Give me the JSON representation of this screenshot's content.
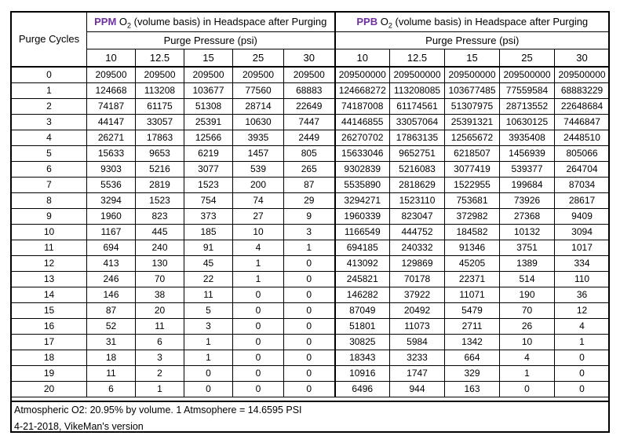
{
  "table": {
    "corner_label": "Purge Cycles",
    "ppm_group": {
      "prefix": "PPM",
      "o_symbol": "O",
      "sub": "2",
      "suffix": " (volume basis) in Headspace after Purging"
    },
    "ppb_group": {
      "prefix": "PPB",
      "o_symbol": "O",
      "sub": "2",
      "suffix": " (volume basis) in Headspace after Purging"
    },
    "pressure_label": "Purge Pressure (psi)",
    "pressures": [
      "10",
      "12.5",
      "15",
      "25",
      "30"
    ],
    "rows": [
      {
        "cycle": "0",
        "ppm": [
          "209500",
          "209500",
          "209500",
          "209500",
          "209500"
        ],
        "ppb": [
          "209500000",
          "209500000",
          "209500000",
          "209500000",
          "209500000"
        ]
      },
      {
        "cycle": "1",
        "ppm": [
          "124668",
          "113208",
          "103677",
          "77560",
          "68883"
        ],
        "ppb": [
          "124668272",
          "113208085",
          "103677485",
          "77559584",
          "68883229"
        ]
      },
      {
        "cycle": "2",
        "ppm": [
          "74187",
          "61175",
          "51308",
          "28714",
          "22649"
        ],
        "ppb": [
          "74187008",
          "61174561",
          "51307975",
          "28713552",
          "22648684"
        ]
      },
      {
        "cycle": "3",
        "ppm": [
          "44147",
          "33057",
          "25391",
          "10630",
          "7447"
        ],
        "ppb": [
          "44146855",
          "33057064",
          "25391321",
          "10630125",
          "7446847"
        ]
      },
      {
        "cycle": "4",
        "ppm": [
          "26271",
          "17863",
          "12566",
          "3935",
          "2449"
        ],
        "ppb": [
          "26270702",
          "17863135",
          "12565672",
          "3935408",
          "2448510"
        ]
      },
      {
        "cycle": "5",
        "ppm": [
          "15633",
          "9653",
          "6219",
          "1457",
          "805"
        ],
        "ppb": [
          "15633046",
          "9652751",
          "6218507",
          "1456939",
          "805066"
        ]
      },
      {
        "cycle": "6",
        "ppm": [
          "9303",
          "5216",
          "3077",
          "539",
          "265"
        ],
        "ppb": [
          "9302839",
          "5216083",
          "3077419",
          "539377",
          "264704"
        ]
      },
      {
        "cycle": "7",
        "ppm": [
          "5536",
          "2819",
          "1523",
          "200",
          "87"
        ],
        "ppb": [
          "5535890",
          "2818629",
          "1522955",
          "199684",
          "87034"
        ]
      },
      {
        "cycle": "8",
        "ppm": [
          "3294",
          "1523",
          "754",
          "74",
          "29"
        ],
        "ppb": [
          "3294271",
          "1523110",
          "753681",
          "73926",
          "28617"
        ]
      },
      {
        "cycle": "9",
        "ppm": [
          "1960",
          "823",
          "373",
          "27",
          "9"
        ],
        "ppb": [
          "1960339",
          "823047",
          "372982",
          "27368",
          "9409"
        ]
      },
      {
        "cycle": "10",
        "ppm": [
          "1167",
          "445",
          "185",
          "10",
          "3"
        ],
        "ppb": [
          "1166549",
          "444752",
          "184582",
          "10132",
          "3094"
        ]
      },
      {
        "cycle": "11",
        "ppm": [
          "694",
          "240",
          "91",
          "4",
          "1"
        ],
        "ppb": [
          "694185",
          "240332",
          "91346",
          "3751",
          "1017"
        ]
      },
      {
        "cycle": "12",
        "ppm": [
          "413",
          "130",
          "45",
          "1",
          "0"
        ],
        "ppb": [
          "413092",
          "129869",
          "45205",
          "1389",
          "334"
        ]
      },
      {
        "cycle": "13",
        "ppm": [
          "246",
          "70",
          "22",
          "1",
          "0"
        ],
        "ppb": [
          "245821",
          "70178",
          "22371",
          "514",
          "110"
        ]
      },
      {
        "cycle": "14",
        "ppm": [
          "146",
          "38",
          "11",
          "0",
          "0"
        ],
        "ppb": [
          "146282",
          "37922",
          "11071",
          "190",
          "36"
        ]
      },
      {
        "cycle": "15",
        "ppm": [
          "87",
          "20",
          "5",
          "0",
          "0"
        ],
        "ppb": [
          "87049",
          "20492",
          "5479",
          "70",
          "12"
        ]
      },
      {
        "cycle": "16",
        "ppm": [
          "52",
          "11",
          "3",
          "0",
          "0"
        ],
        "ppb": [
          "51801",
          "11073",
          "2711",
          "26",
          "4"
        ]
      },
      {
        "cycle": "17",
        "ppm": [
          "31",
          "6",
          "1",
          "0",
          "0"
        ],
        "ppb": [
          "30825",
          "5984",
          "1342",
          "10",
          "1"
        ]
      },
      {
        "cycle": "18",
        "ppm": [
          "18",
          "3",
          "1",
          "0",
          "0"
        ],
        "ppb": [
          "18343",
          "3233",
          "664",
          "4",
          "0"
        ]
      },
      {
        "cycle": "19",
        "ppm": [
          "11",
          "2",
          "0",
          "0",
          "0"
        ],
        "ppb": [
          "10916",
          "1747",
          "329",
          "1",
          "0"
        ]
      },
      {
        "cycle": "20",
        "ppm": [
          "6",
          "1",
          "0",
          "0",
          "0"
        ],
        "ppb": [
          "6496",
          "944",
          "163",
          "0",
          "0"
        ]
      }
    ]
  },
  "footer": {
    "line1": "Atmospheric O2: 20.95% by volume.  1 Atmsophere = 14.6595 PSI",
    "line2": "4-21-2018, VikeMan's version"
  },
  "colors": {
    "accent": "#7030A0",
    "border": "#000000",
    "background": "#FFFFFF"
  }
}
